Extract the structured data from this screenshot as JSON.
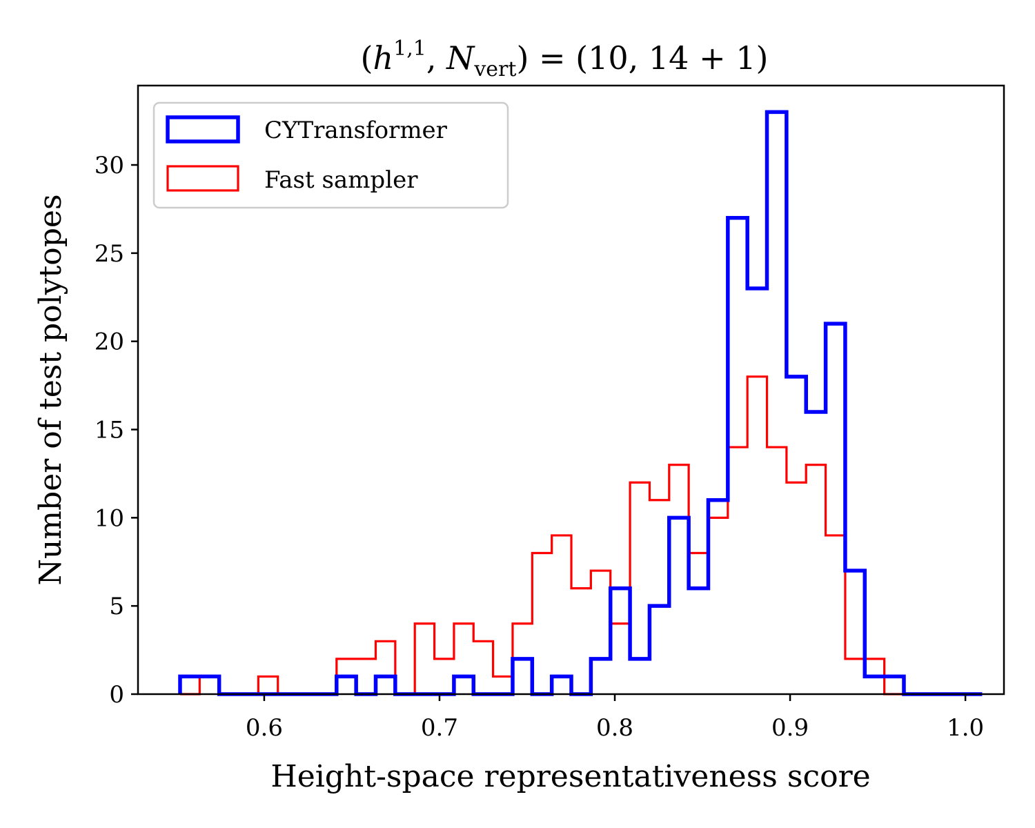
{
  "chart_data": {
    "type": "histogram",
    "title": "(h^{1,1}, N_vert) = (10, 14 + 1)",
    "title_parts": {
      "open": "(",
      "h": "h",
      "h_sup": "1,1",
      "sep": ", ",
      "N": "N",
      "N_sub": "vert",
      "rest": ") = (10, 14 + 1)"
    },
    "xlabel": "Height-space representativeness score",
    "ylabel": "Number of test polytopes",
    "xlim": [
      0.528,
      1.022
    ],
    "ylim": [
      0,
      34.5
    ],
    "xticks": [
      0.6,
      0.7,
      0.8,
      0.9,
      1.0
    ],
    "xtick_labels": [
      "0.6",
      "0.7",
      "0.8",
      "0.9",
      "1.0"
    ],
    "yticks": [
      0,
      5,
      10,
      15,
      20,
      25,
      30
    ],
    "ytick_labels": [
      "0",
      "5",
      "10",
      "15",
      "20",
      "25",
      "30"
    ],
    "legend_location": "upper-left",
    "series": [
      {
        "name": "CYTransformer",
        "color": "#0000ff",
        "stroke": "thick",
        "bin_start": 0.552,
        "bin_width": 0.01116,
        "counts": [
          1,
          1,
          0,
          0,
          0,
          0,
          0,
          0,
          1,
          0,
          1,
          0,
          0,
          0,
          1,
          0,
          0,
          2,
          0,
          1,
          0,
          2,
          6,
          2,
          5,
          10,
          6,
          11,
          27,
          23,
          33,
          18,
          16,
          21,
          7,
          1,
          1,
          0,
          0,
          0,
          0
        ]
      },
      {
        "name": "Fast sampler",
        "color": "#ff0000",
        "stroke": "thin",
        "bin_start": 0.552,
        "bin_width": 0.01116,
        "counts": [
          0,
          1,
          0,
          0,
          1,
          0,
          0,
          0,
          2,
          2,
          3,
          0,
          4,
          2,
          4,
          3,
          1,
          4,
          8,
          9,
          6,
          7,
          4,
          12,
          11,
          13,
          8,
          10,
          14,
          18,
          14,
          12,
          13,
          9,
          2,
          2,
          0,
          0,
          0,
          0,
          0
        ]
      }
    ]
  }
}
